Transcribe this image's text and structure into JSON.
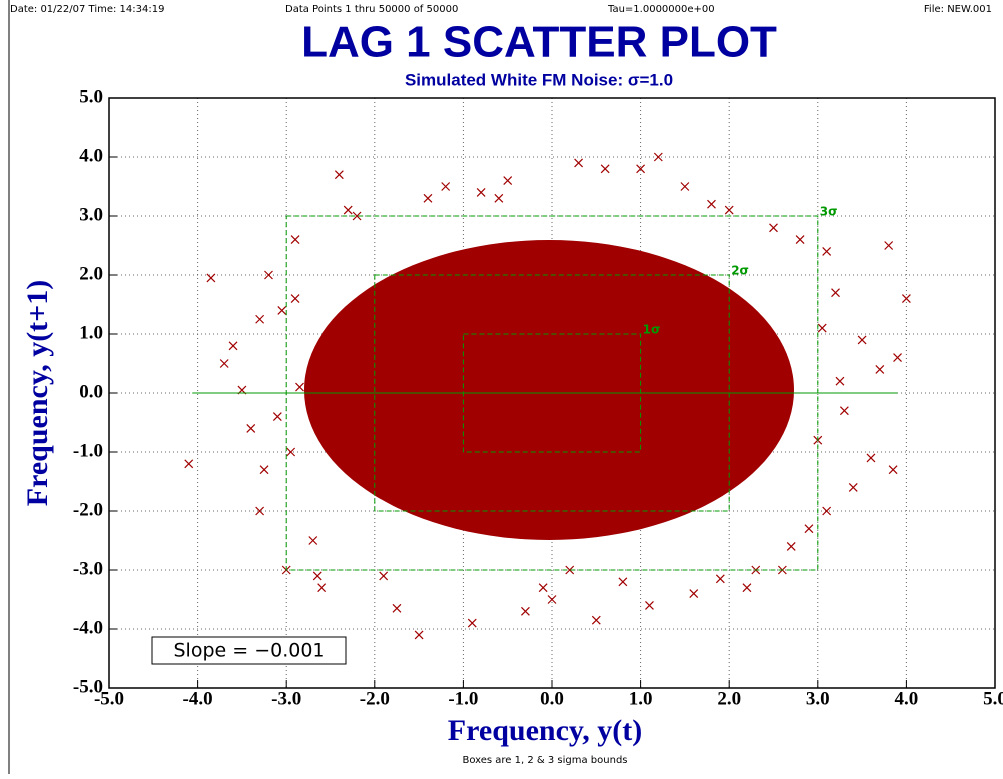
{
  "header": {
    "date": "Date: 01/22/07  Time: 14:34:19",
    "points": "Data Points 1 thru 50000  of 50000",
    "tau": "Tau=1.0000000e+00",
    "file": "File: NEW.001"
  },
  "chart_data": {
    "type": "scatter",
    "title": "LAG 1 SCATTER PLOT",
    "subtitle": "Simulated White FM Noise: σ=1.0",
    "x_label": "Frequency,  y(t)",
    "y_label": "Frequency,  y(t+1)",
    "footnote": "Boxes are 1, 2 & 3 sigma bounds",
    "slope_label": "Slope = −0.001",
    "xlim": [
      -5,
      5
    ],
    "ylim": [
      -5,
      5
    ],
    "xticks": [
      {
        "value": -5,
        "label": "-5.0"
      },
      {
        "value": -4,
        "label": "-4.0"
      },
      {
        "value": -3,
        "label": "-3.0"
      },
      {
        "value": -2,
        "label": "-2.0"
      },
      {
        "value": -1,
        "label": "-1.0"
      },
      {
        "value": 0,
        "label": "0.0"
      },
      {
        "value": 1,
        "label": "1.0"
      },
      {
        "value": 2,
        "label": "2.0"
      },
      {
        "value": 3,
        "label": "3.0"
      },
      {
        "value": 4,
        "label": "4.0"
      },
      {
        "value": 5,
        "label": "5.0"
      }
    ],
    "yticks": [
      {
        "value": -5,
        "label": "-5.0"
      },
      {
        "value": -4,
        "label": "-4.0"
      },
      {
        "value": -3,
        "label": "-3.0"
      },
      {
        "value": -2,
        "label": "-2.0"
      },
      {
        "value": -1,
        "label": "-1.0"
      },
      {
        "value": 0,
        "label": "0.0"
      },
      {
        "value": 1,
        "label": "1.0"
      },
      {
        "value": 2,
        "label": "2.0"
      },
      {
        "value": 3,
        "label": "3.0"
      },
      {
        "value": 4,
        "label": "4.0"
      },
      {
        "value": 5,
        "label": "5.0"
      }
    ],
    "grid": true,
    "sigma_boxes": [
      {
        "value": 1,
        "label": "1σ"
      },
      {
        "value": 2,
        "label": "2σ"
      },
      {
        "value": 3,
        "label": "3σ"
      }
    ],
    "box_color": "#009900",
    "fit_line": {
      "x": [
        -4.06,
        3.9
      ],
      "y": [
        0,
        0
      ],
      "color": "#009900"
    },
    "series": [
      {
        "color": "#a00000",
        "x": [
          -4.1,
          -3.85,
          -3.7,
          -3.5,
          -3.3,
          -3.2,
          -3.25,
          -3.0,
          -2.6,
          -2.4,
          -2.3,
          -1.75,
          -1.5,
          -1.2,
          -0.9,
          -0.6,
          -0.3,
          0.3,
          0.6,
          0.5,
          1.0,
          1.2,
          1.1,
          1.5,
          1.6,
          2.0,
          2.3,
          2.6,
          2.8,
          3.1,
          3.2,
          3.3,
          3.5,
          3.6,
          3.7,
          3.8,
          3.9,
          4.0,
          3.85,
          3.4,
          3.1,
          2.9,
          -2.7,
          -2.9,
          -3.1,
          -3.4,
          -2.65,
          0.0,
          -0.5,
          2.2,
          -3.6,
          -3.3,
          -2.9,
          -2.95,
          3.0,
          3.25,
          -1.9,
          -1.4,
          1.8,
          1.9,
          -0.1,
          0.8,
          -2.2,
          2.5,
          2.7,
          -2.85,
          3.05,
          -3.05,
          0.2,
          -0.8
        ],
        "y": [
          -1.2,
          1.95,
          0.5,
          0.05,
          1.25,
          2.0,
          -1.3,
          -3.0,
          -3.3,
          3.7,
          3.1,
          -3.65,
          -4.1,
          3.5,
          -3.9,
          3.3,
          -3.7,
          3.9,
          3.8,
          -3.85,
          3.8,
          4.0,
          -3.6,
          3.5,
          -3.4,
          3.1,
          -3.0,
          -3.0,
          2.6,
          2.4,
          1.7,
          -0.3,
          0.9,
          -1.1,
          0.4,
          2.5,
          0.6,
          1.6,
          -1.3,
          -1.6,
          -2.0,
          -2.3,
          -2.5,
          2.6,
          -0.4,
          -0.6,
          -3.1,
          -3.5,
          3.6,
          -3.3,
          0.8,
          -2.0,
          1.6,
          -1.0,
          -0.8,
          0.2,
          -3.1,
          3.3,
          3.2,
          -3.15,
          -3.3,
          -3.2,
          3.0,
          2.8,
          -2.6,
          0.1,
          1.1,
          1.4,
          -3.0,
          3.4
        ]
      }
    ]
  }
}
